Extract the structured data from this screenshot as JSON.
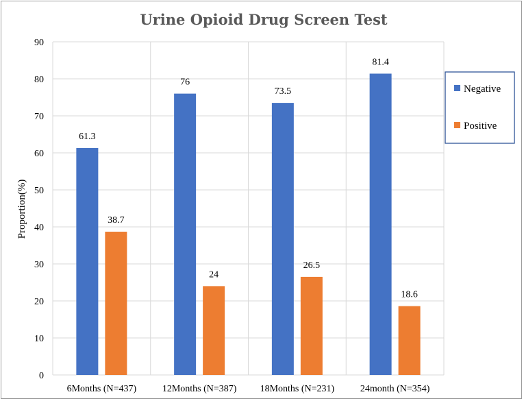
{
  "chart_data": {
    "type": "bar",
    "title": "Urine Opioid Drug Screen Test",
    "xlabel": "",
    "ylabel": "Proportion(%)",
    "ylim": [
      0,
      90
    ],
    "yticks": [
      0,
      10,
      20,
      30,
      40,
      50,
      60,
      70,
      80,
      90
    ],
    "grid": true,
    "legend_position": "right",
    "categories": [
      "6Months (N=437)",
      "12Months (N=387)",
      "18Months (N=231)",
      "24month (N=354)"
    ],
    "series": [
      {
        "name": "Negative",
        "color": "#4472c4",
        "values": [
          61.3,
          76,
          73.5,
          81.4
        ],
        "labels": [
          "61.3",
          "76",
          "73.5",
          "81.4"
        ]
      },
      {
        "name": "Positive",
        "color": "#ed7d31",
        "values": [
          38.7,
          24,
          26.5,
          18.6
        ],
        "labels": [
          "38.7",
          "24",
          "26.5",
          "18.6"
        ]
      }
    ]
  }
}
